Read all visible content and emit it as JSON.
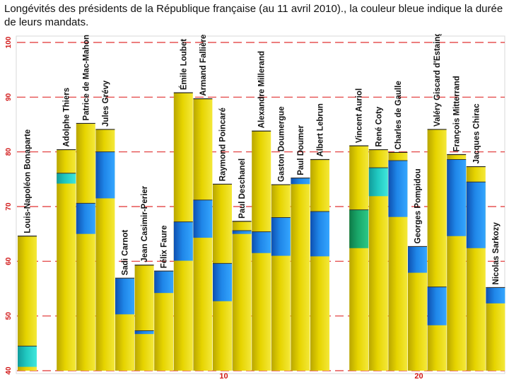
{
  "title": "Longévités des présidents de la République française (au 11 avril 2010)., la couleur bleue indique la durée de leurs mandats.",
  "colors": {
    "life": "#e6d400",
    "mandate": "#1f86e8",
    "mandate_teal": "#20c8c0",
    "mandate_green": "#1aa86a",
    "gridline": "#e03030",
    "tick_text": "#d11818",
    "index_text": "#d11818",
    "frame": "#d9d9d9"
  },
  "chart_data": {
    "type": "bar",
    "title": "Longévités des présidents de la République française (au 11 avril 2010)., la couleur bleue indique la durée de leurs mandats.",
    "ylabel": "",
    "xlabel": "",
    "ylim": [
      40,
      100
    ],
    "yticks": [
      40,
      50,
      60,
      70,
      80,
      90,
      100
    ],
    "x_markers": [
      {
        "index": 10,
        "label": "10"
      },
      {
        "index": 20,
        "label": "20"
      }
    ],
    "bars": [
      {
        "name": "Louis-Napoléon Bonaparte",
        "lifespan": 64.6,
        "mandate_start": 40.7,
        "mandate_end": 44.5,
        "mandate_color": "teal"
      },
      null,
      {
        "name": "Adolphe Thiers",
        "lifespan": 80.4,
        "mandate_start": 74.2,
        "mandate_end": 76.1,
        "mandate_color": "teal"
      },
      {
        "name": "Patrice de Mac-Mahon",
        "lifespan": 85.2,
        "mandate_start": 65.0,
        "mandate_end": 70.6,
        "mandate_color": "blue"
      },
      {
        "name": "Jules Grévy",
        "lifespan": 84.1,
        "mandate_start": 71.5,
        "mandate_end": 80.0,
        "mandate_color": "blue"
      },
      {
        "name": "Sadi Carnot",
        "lifespan": 56.9,
        "mandate_start": 50.3,
        "mandate_end": 56.9,
        "mandate_color": "blue"
      },
      {
        "name": "Jean Casimir-Perier",
        "lifespan": 59.3,
        "mandate_start": 46.7,
        "mandate_end": 47.3,
        "mandate_color": "blue"
      },
      {
        "name": "Félix Faure",
        "lifespan": 58.2,
        "mandate_start": 54.2,
        "mandate_end": 58.2,
        "mandate_color": "blue"
      },
      {
        "name": "Émile Loubet",
        "lifespan": 90.8,
        "mandate_start": 60.1,
        "mandate_end": 67.2,
        "mandate_color": "blue"
      },
      {
        "name": "Armand Fallières",
        "lifespan": 89.7,
        "mandate_start": 64.3,
        "mandate_end": 71.2,
        "mandate_color": "blue"
      },
      {
        "name": "Raymond Poincaré",
        "lifespan": 74.1,
        "mandate_start": 52.7,
        "mandate_end": 59.6,
        "mandate_color": "blue"
      },
      {
        "name": "Paul Deschanel",
        "lifespan": 67.3,
        "mandate_start": 65.0,
        "mandate_end": 65.6,
        "mandate_color": "blue"
      },
      {
        "name": "Alexandre Millerand",
        "lifespan": 83.8,
        "mandate_start": 61.5,
        "mandate_end": 65.4,
        "mandate_color": "blue"
      },
      {
        "name": "Gaston Doumergue",
        "lifespan": 74.0,
        "mandate_start": 61.0,
        "mandate_end": 68.0,
        "mandate_color": "blue"
      },
      {
        "name": "Paul Doumer",
        "lifespan": 75.2,
        "mandate_start": 74.1,
        "mandate_end": 75.2,
        "mandate_color": "blue"
      },
      {
        "name": "Albert Lebrun",
        "lifespan": 78.6,
        "mandate_start": 60.9,
        "mandate_end": 69.1,
        "mandate_color": "blue"
      },
      null,
      {
        "name": "Vincent Auriol",
        "lifespan": 81.1,
        "mandate_start": 62.4,
        "mandate_end": 69.4,
        "mandate_color": "green"
      },
      {
        "name": "René Coty",
        "lifespan": 80.4,
        "mandate_start": 71.9,
        "mandate_end": 77.1,
        "mandate_color": "teal"
      },
      {
        "name": "Charles de Gaulle",
        "lifespan": 79.9,
        "mandate_start": 68.1,
        "mandate_end": 78.4,
        "mandate_color": "blue"
      },
      {
        "name": "Georges Pompidou",
        "lifespan": 62.7,
        "mandate_start": 57.9,
        "mandate_end": 62.7,
        "mandate_color": "blue"
      },
      {
        "name": "Valéry Giscard d'Estaing",
        "lifespan": 84.1,
        "mandate_start": 48.3,
        "mandate_end": 55.3,
        "mandate_color": "blue"
      },
      {
        "name": "François Mitterrand",
        "lifespan": 79.5,
        "mandate_start": 64.6,
        "mandate_end": 78.6,
        "mandate_color": "blue"
      },
      {
        "name": "Jacques Chirac",
        "lifespan": 77.3,
        "mandate_start": 62.4,
        "mandate_end": 74.5,
        "mandate_color": "blue"
      },
      {
        "name": "Nicolas Sarkozy",
        "lifespan": 55.2,
        "mandate_start": 52.3,
        "mandate_end": 55.2,
        "mandate_color": "blue"
      }
    ]
  }
}
